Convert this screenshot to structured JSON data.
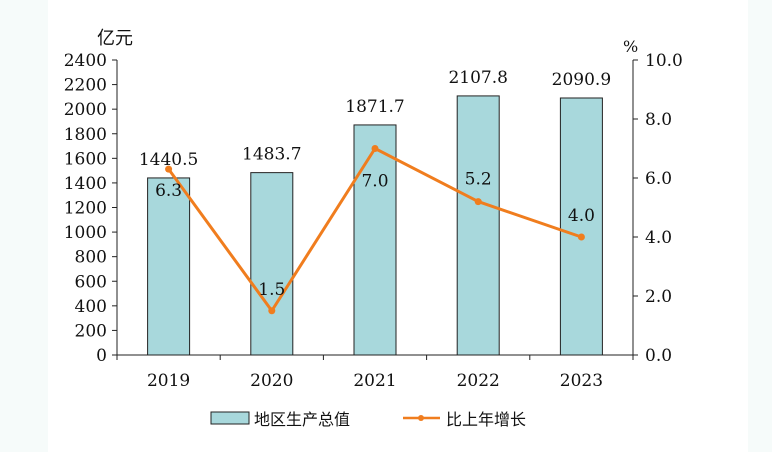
{
  "chart_data": {
    "type": "bar",
    "categories": [
      "2019",
      "2020",
      "2021",
      "2022",
      "2023"
    ],
    "series": [
      {
        "name": "地区生产总值",
        "type": "bar",
        "axis": "left",
        "values": [
          1440.5,
          1483.7,
          1871.7,
          2107.8,
          2090.9
        ],
        "labels": [
          "1440.5",
          "1483.7",
          "1871.7",
          "2107.8",
          "2090.9"
        ],
        "color": "#a8d8dc"
      },
      {
        "name": "比上年增长",
        "type": "line",
        "axis": "right",
        "values": [
          6.3,
          1.5,
          7.0,
          5.2,
          4.0
        ],
        "labels": [
          "6.3",
          "1.5",
          "7.0",
          "5.2",
          "4.0"
        ],
        "color": "#f07d1e"
      }
    ],
    "y_left": {
      "unit": "亿元",
      "ylim": [
        0,
        2400
      ],
      "ticks": [
        "0",
        "200",
        "400",
        "600",
        "800",
        "1000",
        "1200",
        "1400",
        "1600",
        "1800",
        "2000",
        "2200",
        "2400"
      ]
    },
    "y_right": {
      "unit": "%",
      "ylim": [
        0,
        10
      ],
      "ticks": [
        "0.0",
        "2.0",
        "4.0",
        "6.0",
        "8.0",
        "10.0"
      ]
    },
    "legend": {
      "position": "bottom"
    },
    "grid": false
  }
}
